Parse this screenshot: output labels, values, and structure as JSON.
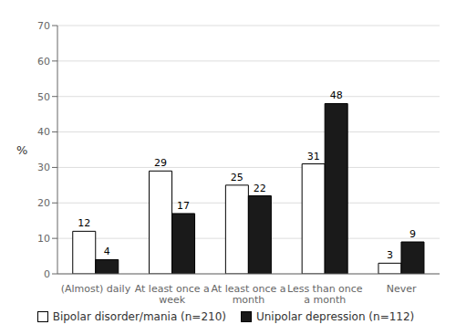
{
  "chart_data": {
    "type": "bar",
    "categories": [
      "(Almost) daily",
      "At least once a\nweek",
      "At least once a\nmonth",
      "Less than once\na month",
      "Never"
    ],
    "series": [
      {
        "name": "Bipolar disorder/mania (n=210)",
        "color": "#ffffff",
        "values": [
          12,
          29,
          25,
          31,
          3
        ]
      },
      {
        "name": "Unipolar depression (n=112)",
        "color": "#1a1a1a",
        "values": [
          4,
          17,
          22,
          48,
          9
        ]
      }
    ],
    "ylabel": "%",
    "ylim": [
      0,
      70
    ],
    "yticks": [
      0,
      10,
      20,
      30,
      40,
      50,
      60,
      70
    ],
    "grid": true,
    "legend": "bottom",
    "data_labels": true
  }
}
